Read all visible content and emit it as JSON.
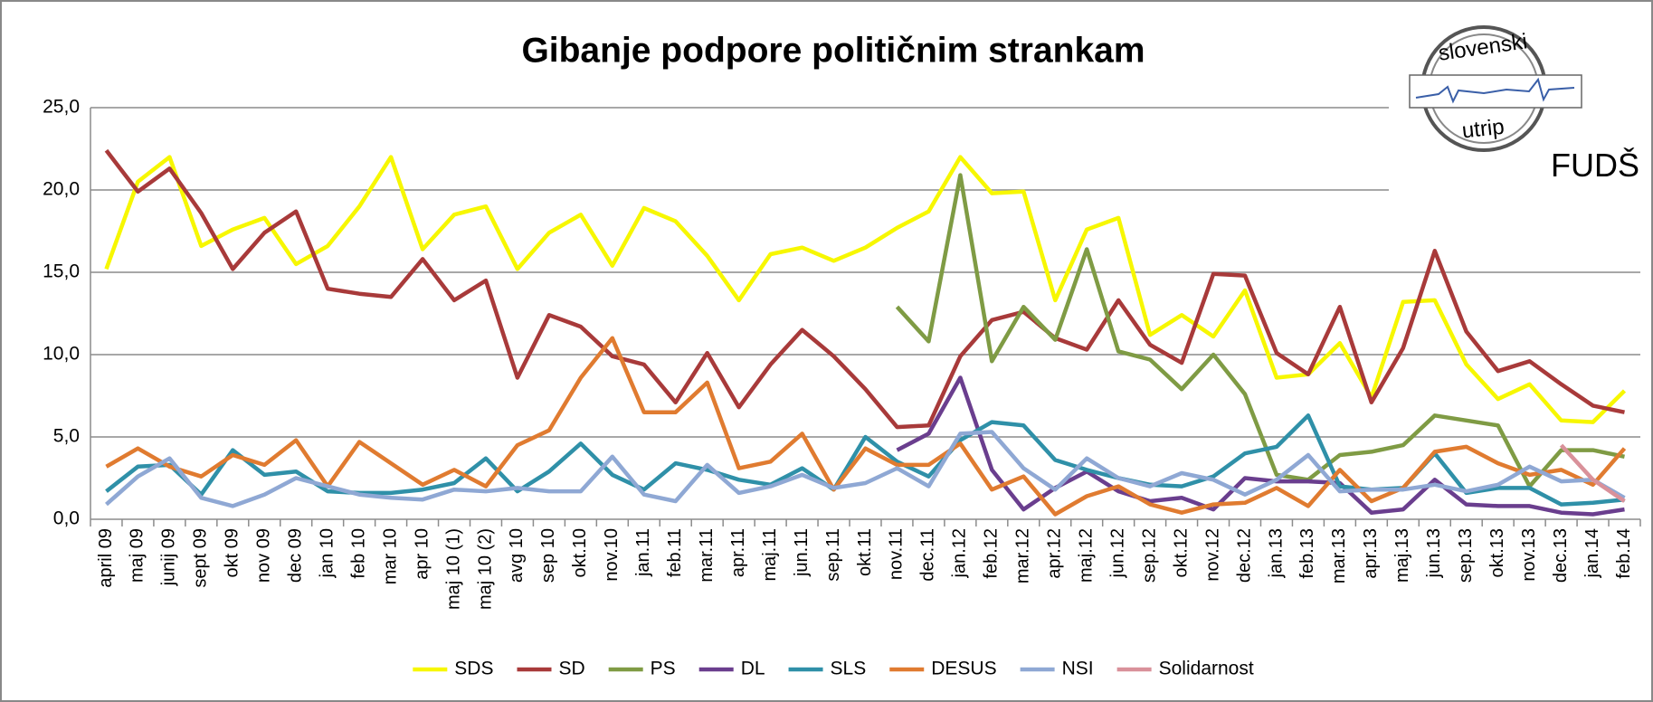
{
  "chart_data": {
    "type": "line",
    "title": "Gibanje podpore političnim strankam",
    "logo": {
      "top": "slovenski",
      "bottom": "utrip",
      "org": "FUDŠ"
    },
    "categories": [
      "april 09",
      "maj 09",
      "junij 09",
      "sept 09",
      "okt 09",
      "nov 09",
      "dec 09",
      "jan 10",
      "feb 10",
      "mar 10",
      "apr 10",
      "maj 10 (1)",
      "maj 10 (2)",
      "avg 10",
      "sep 10",
      "okt.10",
      "nov.10",
      "jan.11",
      "feb.11",
      "mar.11",
      "apr.11",
      "maj.11",
      "jun.11",
      "sep.11",
      "okt.11",
      "nov.11",
      "dec.11",
      "jan.12",
      "feb.12",
      "mar.12",
      "apr.12",
      "maj.12",
      "jun.12",
      "sep.12",
      "okt.12",
      "nov.12",
      "dec.12",
      "jan.13",
      "feb.13",
      "mar.13",
      "apr.13",
      "maj.13",
      "jun.13",
      "sep.13",
      "okt.13",
      "nov.13",
      "dec.13",
      "jan.14",
      "feb.14"
    ],
    "ylim": [
      0,
      25
    ],
    "yticks": [
      {
        "value": 0,
        "label": "0,0"
      },
      {
        "value": 5,
        "label": "5,0"
      },
      {
        "value": 10,
        "label": "10,0"
      },
      {
        "value": 15,
        "label": "15,0"
      },
      {
        "value": 20,
        "label": "20,0"
      },
      {
        "value": 25,
        "label": "25,0"
      }
    ],
    "grid": true,
    "legend": "bottom",
    "series": [
      {
        "name": "SDS",
        "color": "#f7f700",
        "values": [
          15.2,
          20.5,
          22.0,
          16.6,
          17.6,
          18.3,
          15.5,
          16.6,
          19.0,
          22.0,
          16.4,
          18.5,
          19.0,
          15.2,
          17.4,
          18.5,
          15.4,
          18.9,
          18.1,
          16.0,
          13.3,
          16.1,
          16.5,
          15.7,
          16.5,
          17.7,
          18.7,
          22.0,
          19.8,
          19.9,
          13.3,
          17.6,
          18.3,
          11.2,
          12.4,
          11.1,
          13.9,
          8.6,
          8.8,
          10.7,
          7.4,
          13.2,
          13.3,
          9.4,
          7.3,
          8.2,
          6.0,
          5.9,
          7.8
        ]
      },
      {
        "name": "SD",
        "color": "#a83a3a",
        "values": [
          22.4,
          19.9,
          21.3,
          18.6,
          15.2,
          17.4,
          18.7,
          14.0,
          13.7,
          13.5,
          15.8,
          13.3,
          14.5,
          8.6,
          12.4,
          11.7,
          9.9,
          9.4,
          7.1,
          10.1,
          6.8,
          9.4,
          11.5,
          9.9,
          7.9,
          5.6,
          5.7,
          9.9,
          12.1,
          12.6,
          11.0,
          10.3,
          13.3,
          10.6,
          9.5,
          14.9,
          14.8,
          10.1,
          8.8,
          12.9,
          7.1,
          10.4,
          16.3,
          11.4,
          9.0,
          9.6,
          8.2,
          6.9,
          6.5
        ]
      },
      {
        "name": "PS",
        "color": "#7f9b44",
        "values": [
          null,
          null,
          null,
          null,
          null,
          null,
          null,
          null,
          null,
          null,
          null,
          null,
          null,
          null,
          null,
          null,
          null,
          null,
          null,
          null,
          null,
          null,
          null,
          null,
          null,
          12.9,
          10.8,
          20.9,
          9.6,
          12.9,
          10.9,
          16.4,
          10.2,
          9.7,
          7.9,
          10.0,
          7.6,
          2.7,
          2.4,
          3.9,
          4.1,
          4.5,
          6.3,
          6.0,
          5.7,
          2.0,
          4.2,
          4.2,
          3.8
        ]
      },
      {
        "name": "DL",
        "color": "#6a3e8e",
        "values": [
          null,
          null,
          null,
          null,
          null,
          null,
          null,
          null,
          null,
          null,
          null,
          null,
          null,
          null,
          null,
          null,
          null,
          null,
          null,
          null,
          null,
          null,
          null,
          null,
          null,
          4.2,
          5.2,
          8.6,
          3.0,
          0.6,
          1.9,
          2.9,
          1.7,
          1.1,
          1.3,
          0.6,
          2.5,
          2.3,
          2.3,
          2.2,
          0.4,
          0.6,
          2.4,
          0.9,
          0.8,
          0.8,
          0.4,
          0.3,
          0.6
        ]
      },
      {
        "name": "SLS",
        "color": "#2f90a8",
        "values": [
          1.7,
          3.2,
          3.3,
          1.5,
          4.2,
          2.7,
          2.9,
          1.7,
          1.6,
          1.6,
          1.8,
          2.2,
          3.7,
          1.7,
          2.9,
          4.6,
          2.7,
          1.8,
          3.4,
          3.0,
          2.4,
          2.1,
          3.1,
          1.8,
          5.0,
          3.5,
          2.6,
          4.8,
          5.9,
          5.7,
          3.6,
          3.0,
          2.5,
          2.1,
          2.0,
          2.6,
          4.0,
          4.4,
          6.3,
          2.0,
          1.8,
          1.9,
          4.0,
          1.6,
          1.9,
          1.9,
          0.9,
          1.0,
          1.2
        ]
      },
      {
        "name": "DESUS",
        "color": "#e07b30",
        "values": [
          3.2,
          4.3,
          3.2,
          2.6,
          3.9,
          3.3,
          4.8,
          2.0,
          4.7,
          3.4,
          2.1,
          3.0,
          2.0,
          4.5,
          5.4,
          8.6,
          11.0,
          6.5,
          6.5,
          8.3,
          3.1,
          3.5,
          5.2,
          1.8,
          4.3,
          3.3,
          3.3,
          4.6,
          1.8,
          2.6,
          0.3,
          1.4,
          2.0,
          0.9,
          0.4,
          0.9,
          1.0,
          1.9,
          0.8,
          3.0,
          1.1,
          1.9,
          4.1,
          4.4,
          3.4,
          2.7,
          3.0,
          2.1,
          4.3
        ]
      },
      {
        "name": "NSI",
        "color": "#8fa8d4",
        "values": [
          0.9,
          2.6,
          3.7,
          1.3,
          0.8,
          1.5,
          2.5,
          2.0,
          1.5,
          1.3,
          1.2,
          1.8,
          1.7,
          1.9,
          1.7,
          1.7,
          3.8,
          1.5,
          1.1,
          3.3,
          1.6,
          2.0,
          2.7,
          1.9,
          2.2,
          3.1,
          2.0,
          5.2,
          5.3,
          3.1,
          1.8,
          3.7,
          2.5,
          2.0,
          2.8,
          2.4,
          1.5,
          2.4,
          3.9,
          1.7,
          1.8,
          1.8,
          2.1,
          1.7,
          2.1,
          3.2,
          2.3,
          2.4,
          1.3
        ]
      },
      {
        "name": "Solidarnost",
        "color": "#d9919a",
        "values": [
          null,
          null,
          null,
          null,
          null,
          null,
          null,
          null,
          null,
          null,
          null,
          null,
          null,
          null,
          null,
          null,
          null,
          null,
          null,
          null,
          null,
          null,
          null,
          null,
          null,
          null,
          null,
          null,
          null,
          null,
          null,
          null,
          null,
          null,
          null,
          null,
          null,
          null,
          null,
          null,
          null,
          null,
          null,
          null,
          null,
          null,
          4.5,
          2.4,
          1.1
        ]
      }
    ]
  }
}
